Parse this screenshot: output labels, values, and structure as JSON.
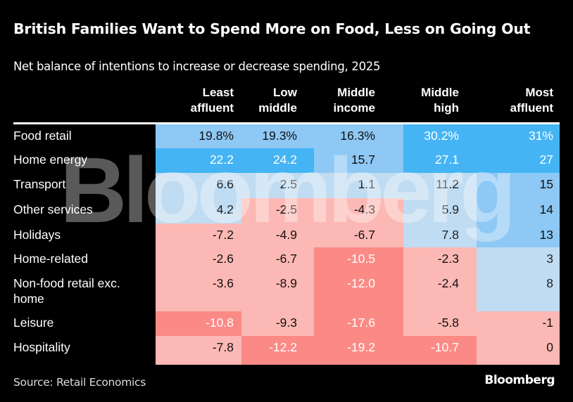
{
  "header": {
    "title": "British Families Want to Spend More on Food, Less on Going Out",
    "subtitle": "Net balance of intentions to increase or decrease spending, 2025"
  },
  "footer": {
    "source": "Source: Retail Economics",
    "brand": "Bloomberg"
  },
  "watermark": "Bloomberg",
  "colors": {
    "strong_positive": "#44b4f5",
    "medium_positive": "#8ec8f4",
    "light_positive": "#c0dcf2",
    "light_negative": "#fcb8b4",
    "strong_negative": "#fb8a86"
  },
  "chart_data": {
    "type": "table",
    "title": "British Families Want to Spend More on Food, Less on Going Out",
    "subtitle": "Net balance of intentions to increase or decrease spending, 2025",
    "columns": [
      [
        "Least",
        "affluent"
      ],
      [
        "Low",
        "middle"
      ],
      [
        "Middle",
        "income"
      ],
      [
        "Middle",
        "high"
      ],
      [
        "Most",
        "affluent"
      ]
    ],
    "rows": [
      {
        "label": "Food retail",
        "display": [
          "19.8%",
          "19.3%",
          "16.3%",
          "30.2%",
          "31%"
        ],
        "values": [
          19.8,
          19.3,
          16.3,
          30.2,
          31
        ]
      },
      {
        "label": "Home energy",
        "display": [
          "22.2",
          "24.2",
          "15.7",
          "27.1",
          "27"
        ],
        "values": [
          22.2,
          24.2,
          15.7,
          27.1,
          27
        ]
      },
      {
        "label": "Transport",
        "display": [
          "6.6",
          "2.5",
          "1.1",
          "11.2",
          "15"
        ],
        "values": [
          6.6,
          2.5,
          1.1,
          11.2,
          15
        ]
      },
      {
        "label": "Other services",
        "display": [
          "4.2",
          "-2.5",
          "-4.3",
          "5.9",
          "14"
        ],
        "values": [
          4.2,
          -2.5,
          -4.3,
          5.9,
          14
        ]
      },
      {
        "label": "Holidays",
        "display": [
          "-7.2",
          "-4.9",
          "-6.7",
          "7.8",
          "13"
        ],
        "values": [
          -7.2,
          -4.9,
          -6.7,
          7.8,
          13
        ]
      },
      {
        "label": "Home-related",
        "display": [
          "-2.6",
          "-6.7",
          "-10.5",
          "-2.3",
          "3"
        ],
        "values": [
          -2.6,
          -6.7,
          -10.5,
          -2.3,
          3
        ]
      },
      {
        "label": "Non-food retail exc. home",
        "display": [
          "-3.6",
          "-8.9",
          "-12.0",
          "-2.4",
          "8"
        ],
        "values": [
          -3.6,
          -8.9,
          -12.0,
          -2.4,
          8
        ]
      },
      {
        "label": "Leisure",
        "display": [
          "-10.8",
          "-9.3",
          "-17.6",
          "-5.8",
          "-1"
        ],
        "values": [
          -10.8,
          -9.3,
          -17.6,
          -5.8,
          -1
        ]
      },
      {
        "label": "Hospitality",
        "display": [
          "-7.8",
          "-12.2",
          "-19.2",
          "-10.7",
          "0"
        ],
        "values": [
          -7.8,
          -12.2,
          -19.2,
          -10.7,
          0
        ]
      }
    ],
    "source": "Source: Retail Economics"
  }
}
